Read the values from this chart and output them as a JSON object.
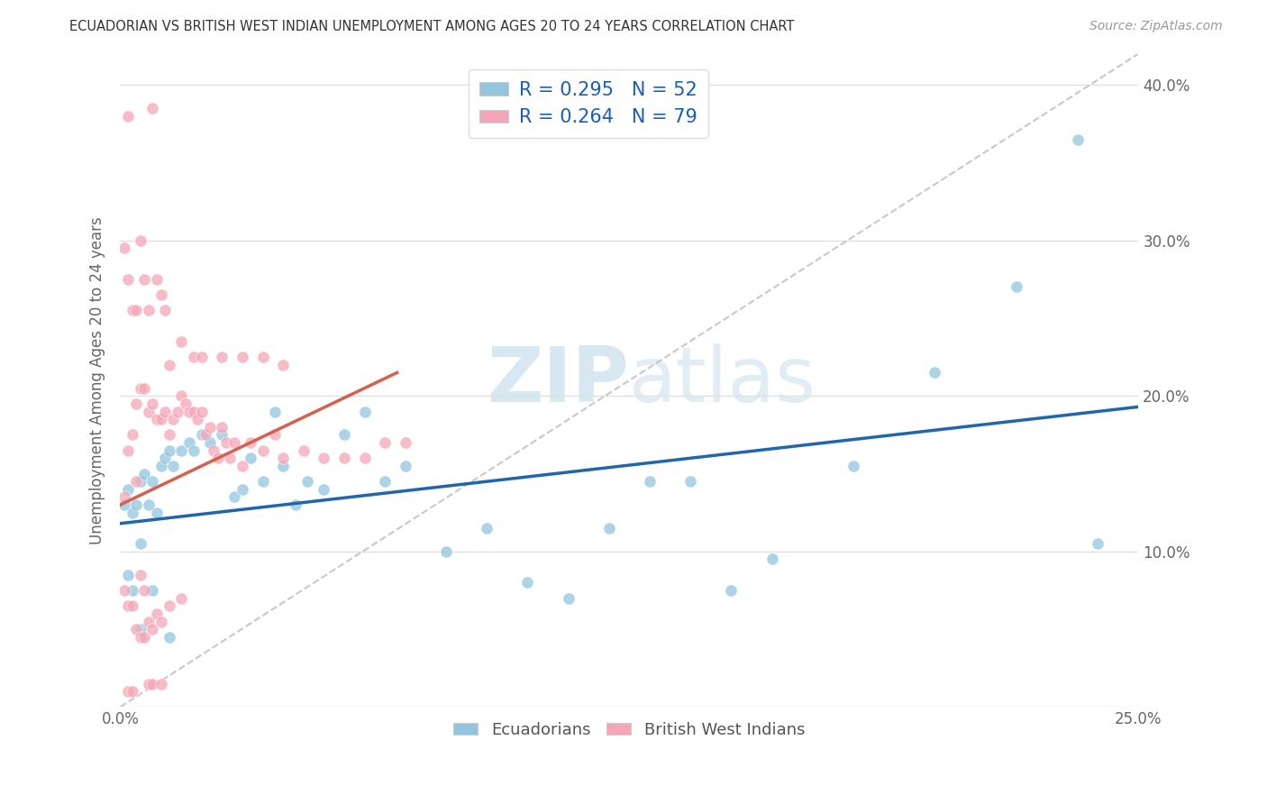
{
  "title": "ECUADORIAN VS BRITISH WEST INDIAN UNEMPLOYMENT AMONG AGES 20 TO 24 YEARS CORRELATION CHART",
  "source": "Source: ZipAtlas.com",
  "ylabel": "Unemployment Among Ages 20 to 24 years",
  "xmin": 0.0,
  "xmax": 0.25,
  "ymin": 0.0,
  "ymax": 0.42,
  "blue_color": "#92c5de",
  "pink_color": "#f4a6b8",
  "blue_line_color": "#2166ac",
  "pink_line_color": "#d6604d",
  "gray_dash_color": "#bbbbbb",
  "watermark_color": "#d0e4f0",
  "ecuadorians_x": [
    0.001,
    0.002,
    0.002,
    0.003,
    0.003,
    0.004,
    0.005,
    0.005,
    0.006,
    0.007,
    0.008,
    0.009,
    0.01,
    0.011,
    0.012,
    0.013,
    0.015,
    0.017,
    0.018,
    0.02,
    0.022,
    0.025,
    0.028,
    0.03,
    0.032,
    0.035,
    0.038,
    0.04,
    0.043,
    0.046,
    0.05,
    0.055,
    0.06,
    0.065,
    0.07,
    0.08,
    0.09,
    0.1,
    0.11,
    0.12,
    0.13,
    0.14,
    0.15,
    0.16,
    0.18,
    0.2,
    0.22,
    0.235,
    0.24,
    0.005,
    0.008,
    0.012
  ],
  "ecuadorians_y": [
    0.13,
    0.14,
    0.085,
    0.125,
    0.075,
    0.13,
    0.105,
    0.145,
    0.15,
    0.13,
    0.145,
    0.125,
    0.155,
    0.16,
    0.165,
    0.155,
    0.165,
    0.17,
    0.165,
    0.175,
    0.17,
    0.175,
    0.135,
    0.14,
    0.16,
    0.145,
    0.19,
    0.155,
    0.13,
    0.145,
    0.14,
    0.175,
    0.19,
    0.145,
    0.155,
    0.1,
    0.115,
    0.08,
    0.07,
    0.115,
    0.145,
    0.145,
    0.075,
    0.095,
    0.155,
    0.215,
    0.27,
    0.365,
    0.105,
    0.05,
    0.075,
    0.045
  ],
  "bwi_x": [
    0.001,
    0.001,
    0.002,
    0.002,
    0.002,
    0.003,
    0.003,
    0.003,
    0.004,
    0.004,
    0.004,
    0.005,
    0.005,
    0.005,
    0.006,
    0.006,
    0.006,
    0.007,
    0.007,
    0.007,
    0.008,
    0.008,
    0.008,
    0.009,
    0.009,
    0.01,
    0.01,
    0.01,
    0.011,
    0.012,
    0.012,
    0.013,
    0.014,
    0.015,
    0.015,
    0.016,
    0.017,
    0.018,
    0.019,
    0.02,
    0.021,
    0.022,
    0.023,
    0.024,
    0.025,
    0.026,
    0.027,
    0.028,
    0.03,
    0.032,
    0.035,
    0.038,
    0.04,
    0.045,
    0.05,
    0.055,
    0.06,
    0.065,
    0.07,
    0.001,
    0.002,
    0.003,
    0.004,
    0.005,
    0.006,
    0.007,
    0.008,
    0.009,
    0.01,
    0.011,
    0.012,
    0.015,
    0.018,
    0.02,
    0.025,
    0.03,
    0.035,
    0.04,
    0.002
  ],
  "bwi_y": [
    0.135,
    0.075,
    0.165,
    0.065,
    0.01,
    0.175,
    0.065,
    0.01,
    0.195,
    0.145,
    0.05,
    0.205,
    0.085,
    0.045,
    0.205,
    0.075,
    0.045,
    0.19,
    0.055,
    0.015,
    0.195,
    0.05,
    0.015,
    0.185,
    0.06,
    0.185,
    0.055,
    0.015,
    0.19,
    0.175,
    0.065,
    0.185,
    0.19,
    0.2,
    0.07,
    0.195,
    0.19,
    0.19,
    0.185,
    0.19,
    0.175,
    0.18,
    0.165,
    0.16,
    0.18,
    0.17,
    0.16,
    0.17,
    0.155,
    0.17,
    0.165,
    0.175,
    0.16,
    0.165,
    0.16,
    0.16,
    0.16,
    0.17,
    0.17,
    0.295,
    0.275,
    0.255,
    0.255,
    0.3,
    0.275,
    0.255,
    0.385,
    0.275,
    0.265,
    0.255,
    0.22,
    0.235,
    0.225,
    0.225,
    0.225,
    0.225,
    0.225,
    0.22,
    0.38
  ],
  "blue_trendline_x": [
    0.0,
    0.25
  ],
  "blue_trendline_y": [
    0.118,
    0.193
  ],
  "pink_trendline_x": [
    0.0,
    0.068
  ],
  "pink_trendline_y": [
    0.13,
    0.215
  ],
  "gray_trendline_x": [
    0.0,
    0.25
  ],
  "gray_trendline_y": [
    0.0,
    0.42
  ]
}
